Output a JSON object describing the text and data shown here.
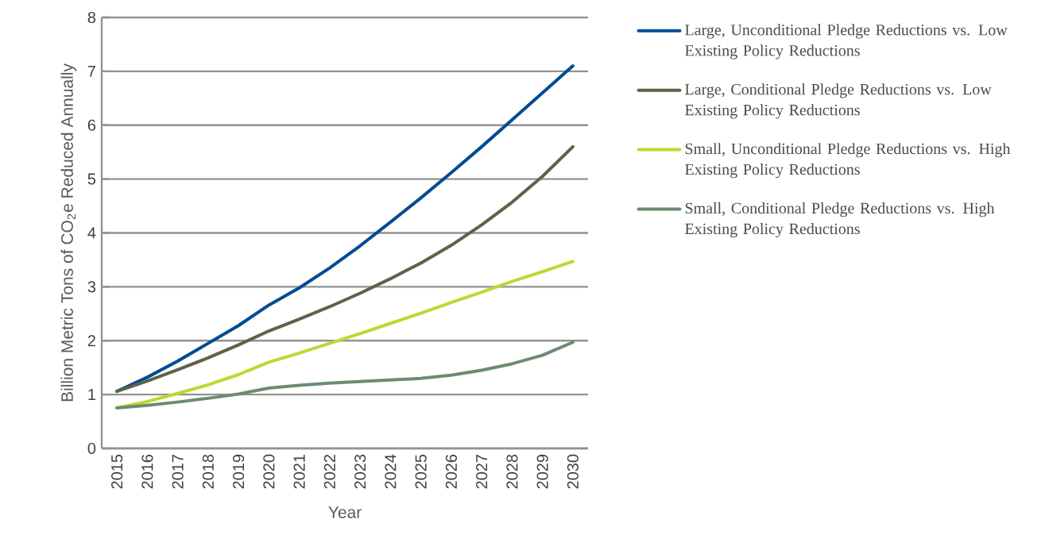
{
  "chart_data": {
    "type": "line",
    "xlabel": "Year",
    "ylabel": "Billion Metric Tons of CO$_{2}$e Reduced Annually",
    "categories": [
      "2015",
      "2016",
      "2017",
      "2018",
      "2019",
      "2020",
      "2021",
      "2022",
      "2023",
      "2024",
      "2025",
      "2026",
      "2027",
      "2028",
      "2029",
      "2030"
    ],
    "series": [
      {
        "name": "Large, Unconditional Pledge Reductions vs. Low Existing Policy Reductions",
        "color": "#004b93",
        "values": [
          1.06,
          1.32,
          1.62,
          1.95,
          2.28,
          2.66,
          2.98,
          3.35,
          3.76,
          4.2,
          4.65,
          5.12,
          5.6,
          6.1,
          6.6,
          7.1
        ]
      },
      {
        "name": "Large, Conditional Pledge Reductions vs. Low Existing Policy Reductions",
        "color": "#5f6149",
        "values": [
          1.06,
          1.25,
          1.46,
          1.68,
          1.92,
          2.18,
          2.4,
          2.63,
          2.88,
          3.15,
          3.44,
          3.77,
          4.15,
          4.57,
          5.05,
          5.6
        ]
      },
      {
        "name": "Small, Unconditional Pledge Reductions vs. High Existing Policy Reductions",
        "color": "#c2d62e",
        "values": [
          0.75,
          0.87,
          1.02,
          1.18,
          1.37,
          1.6,
          1.77,
          1.95,
          2.13,
          2.32,
          2.51,
          2.71,
          2.9,
          3.1,
          3.28,
          3.47
        ]
      },
      {
        "name": "Small, Conditional Pledge Reductions vs. High Existing Policy Reductions",
        "color": "#6b8c72",
        "values": [
          0.75,
          0.8,
          0.86,
          0.93,
          1.01,
          1.12,
          1.17,
          1.21,
          1.24,
          1.27,
          1.3,
          1.36,
          1.45,
          1.57,
          1.73,
          1.97
        ]
      }
    ],
    "ylim": [
      0,
      8
    ],
    "yticks": [
      0,
      1,
      2,
      3,
      4,
      5,
      6,
      7,
      8
    ],
    "grid": "y",
    "legend": "right"
  }
}
